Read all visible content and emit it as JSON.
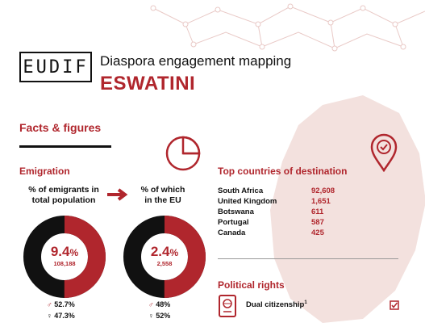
{
  "header": {
    "logo_text": "EUDIF",
    "title": "Diaspora engagement mapping",
    "country": "ESWATINI"
  },
  "section": {
    "facts_title": "Facts & figures",
    "emigration_title": "Emigration",
    "emigrants_label_1": "% of emigrants in",
    "emigrants_label_2": "total population",
    "eu_label_1": "% of which",
    "eu_label_2": "in the EU"
  },
  "donut_total": {
    "percent_value": 9.4,
    "percent_text": "9.4",
    "percent_sign": "%",
    "count": "108,188",
    "male": "52.7%",
    "female": "47.3%"
  },
  "donut_eu": {
    "percent_value": 2.4,
    "percent_text": "2.4",
    "percent_sign": "%",
    "count": "2,558",
    "male": "48%",
    "female": "52%"
  },
  "destinations": {
    "title": "Top countries of destination",
    "rows": [
      {
        "country": "South Africa",
        "value": "92,608"
      },
      {
        "country": "United Kingdom",
        "value": "1,651"
      },
      {
        "country": "Botswana",
        "value": "611"
      },
      {
        "country": "Portugal",
        "value": "587"
      },
      {
        "country": "Canada",
        "value": "425"
      }
    ]
  },
  "political": {
    "title": "Political rights",
    "dual_citizenship": "Dual citizenship",
    "footnote_mark": "1"
  },
  "colors": {
    "accent": "#b0262d",
    "dark": "#111111",
    "map_fill": "#f3e1de"
  },
  "icons": [
    "pie-chart-icon",
    "location-pin-icon",
    "arrow-right-icon",
    "male-icon",
    "female-icon",
    "passport-icon",
    "checkbox-icon"
  ]
}
